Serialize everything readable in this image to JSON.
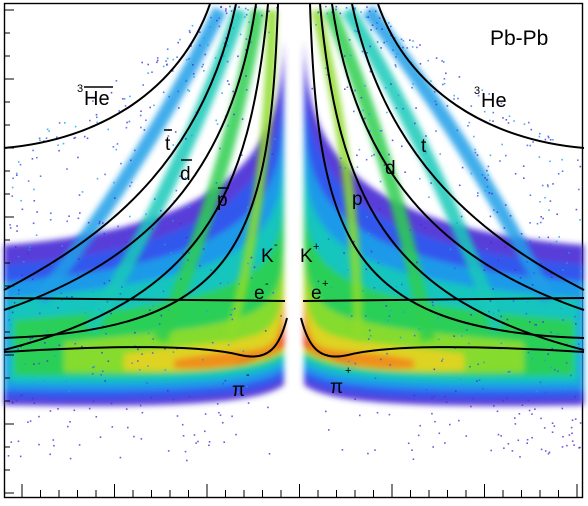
{
  "chart_data": {
    "type": "heatmap",
    "title": "Pb-Pb",
    "xlabel": "",
    "ylabel": "",
    "colorscale": [
      "#4a2bd6",
      "#2f5bef",
      "#1e9fe8",
      "#14c9b8",
      "#2fcf4f",
      "#8ddc2a",
      "#e6d324",
      "#f08a1e",
      "#e0261a"
    ],
    "species_labels": {
      "negative": [
        {
          "id": "he3bar",
          "text": "3He",
          "sup": "3",
          "base": "He",
          "bar": true
        },
        {
          "id": "tbar",
          "text": "t",
          "bar": true
        },
        {
          "id": "dbar",
          "text": "d",
          "bar": true
        },
        {
          "id": "pbar",
          "text": "p",
          "bar": true
        },
        {
          "id": "kminus",
          "text": "K",
          "sup": "-"
        },
        {
          "id": "eminus",
          "text": "e",
          "sup": "-"
        },
        {
          "id": "piminus",
          "text": "π",
          "sup": "-"
        }
      ],
      "positive": [
        {
          "id": "he3",
          "text": "3He",
          "sup": "3",
          "base": "He"
        },
        {
          "id": "t",
          "text": "t"
        },
        {
          "id": "d",
          "text": "d"
        },
        {
          "id": "p",
          "text": "p"
        },
        {
          "id": "kplus",
          "text": "K",
          "sup": "+"
        },
        {
          "id": "eplus",
          "text": "e",
          "sup": "+"
        },
        {
          "id": "piplus",
          "text": "π",
          "sup": "+"
        }
      ]
    }
  }
}
